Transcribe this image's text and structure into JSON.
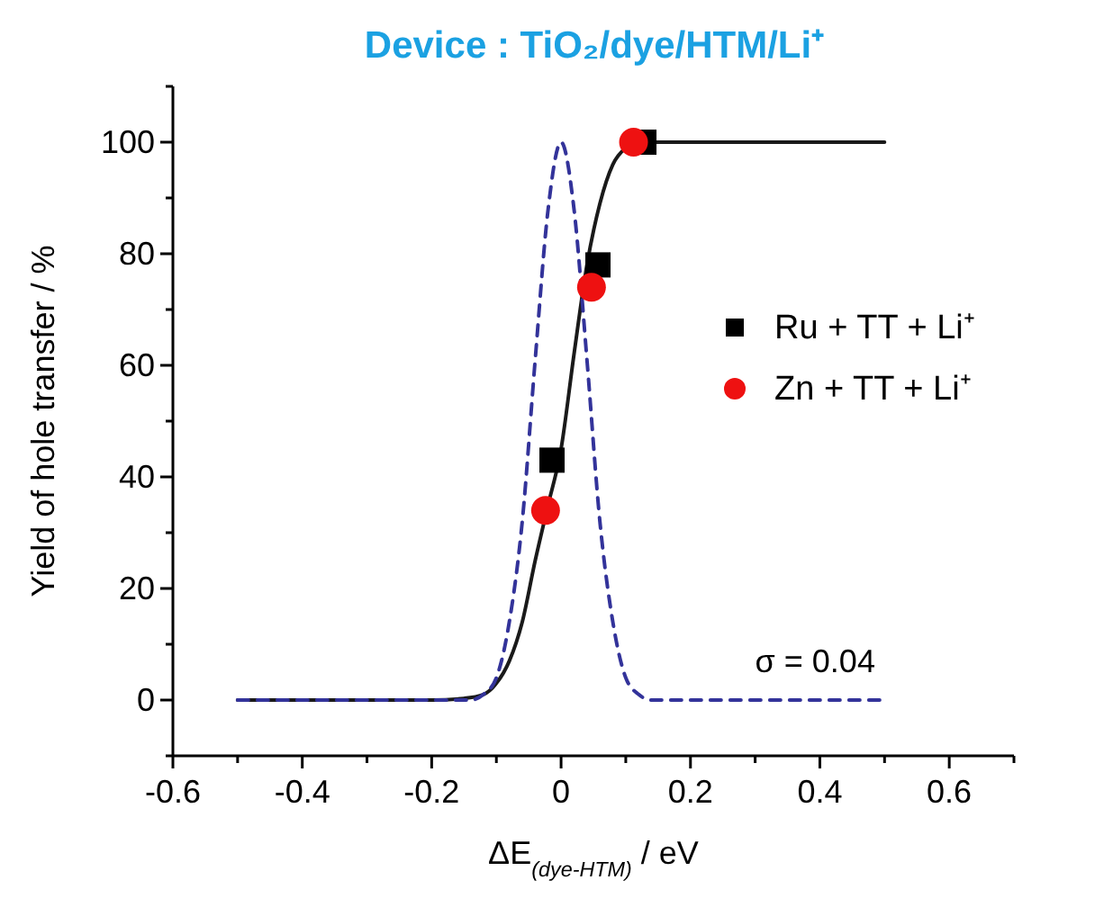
{
  "chart_data": {
    "type": "scatter",
    "title": "Device : TiO₂/dye/HTM/Li⁺",
    "xlabel": "ΔE$_{(dye-HTM)}$ / eV",
    "ylabel": "Yield of hole transfer / %",
    "xlim": [
      -0.6,
      0.7
    ],
    "ylim": [
      -10,
      110
    ],
    "xticks": [
      -0.6,
      {
        "value": -0.5,
        "label": null
      },
      -0.4,
      {
        "value": -0.3,
        "label": null
      },
      -0.2,
      {
        "value": -0.1,
        "label": null
      },
      0.0,
      {
        "value": 0.1,
        "label": null
      },
      0.2,
      {
        "value": 0.3,
        "label": null
      },
      0.4,
      {
        "value": 0.5,
        "label": null
      },
      0.6,
      {
        "value": 0.7,
        "label": null
      }
    ],
    "yticks": [
      {
        "value": -10,
        "label": null
      },
      0,
      {
        "value": 10,
        "label": null
      },
      20,
      {
        "value": 30,
        "label": null
      },
      40,
      {
        "value": 50,
        "label": null
      },
      60,
      {
        "value": 70,
        "label": null
      },
      80,
      {
        "value": 90,
        "label": null
      },
      100,
      {
        "value": 110,
        "label": null
      }
    ],
    "grid": false,
    "legend": "right",
    "annotations": [
      "σ = 0.04"
    ],
    "series": [
      {
        "type": "line",
        "color": "#1a1a1a",
        "line_style": "solid",
        "x": [
          -0.5,
          -0.2,
          -0.15,
          -0.12,
          -0.1,
          -0.08,
          -0.06,
          -0.04,
          -0.02,
          0,
          0.02,
          0.04,
          0.06,
          0.08,
          0.1,
          0.12,
          0.15,
          0.5
        ],
        "values": [
          0,
          0,
          0.3,
          1,
          3,
          7,
          14,
          25,
          35,
          45,
          62,
          78,
          89,
          96,
          99,
          100,
          100,
          100
        ]
      },
      {
        "type": "line",
        "color": "#33339a",
        "line_style": "dashed",
        "x": [
          -0.5,
          -0.2,
          -0.14,
          -0.12,
          -0.1,
          -0.08,
          -0.06,
          -0.04,
          -0.02,
          0,
          0.02,
          0.04,
          0.06,
          0.08,
          0.1,
          0.12,
          0.14,
          0.2,
          0.5
        ],
        "values": [
          0,
          0,
          0,
          1,
          4,
          14,
          32,
          61,
          88,
          100,
          88,
          61,
          32,
          14,
          4,
          1,
          0,
          0,
          0
        ]
      },
      {
        "name": "Ru + TT + Li⁺",
        "color": "#000000",
        "marker": "square",
        "x": [
          -0.014,
          0.057,
          0.128
        ],
        "values": [
          43,
          78,
          100
        ]
      },
      {
        "name": "Zn + TT + Li⁺",
        "color": "#ee1111",
        "marker": "circle",
        "x": [
          -0.024,
          0.047,
          0.112
        ],
        "values": [
          34,
          74,
          100
        ]
      }
    ]
  }
}
